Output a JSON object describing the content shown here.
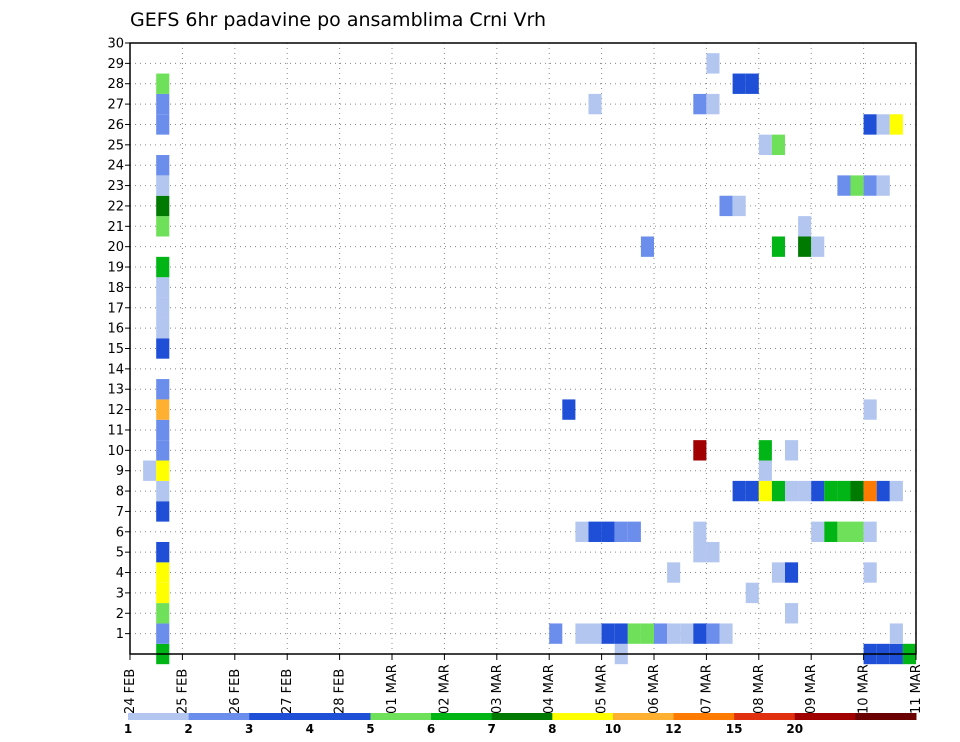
{
  "chart_data": {
    "type": "heatmap",
    "title": "GEFS 6hr padavine po ansamblima Crni Vrh",
    "xlabel": "",
    "ylabel": "",
    "x_tick_labels": [
      "24 FEB",
      "25 FEB",
      "26 FEB",
      "27 FEB",
      "28 FEB",
      "01 MAR",
      "02 MAR",
      "03 MAR",
      "04 MAR",
      "05 MAR",
      "06 MAR",
      "07 MAR",
      "08 MAR",
      "09 MAR",
      "10 MAR",
      "11 MAR"
    ],
    "x_range_days": [
      0,
      15
    ],
    "time_step_hours": 6,
    "ylim": [
      0,
      30
    ],
    "y_tick_labels": [
      "1",
      "2",
      "3",
      "4",
      "5",
      "6",
      "7",
      "8",
      "9",
      "10",
      "11",
      "12",
      "13",
      "14",
      "15",
      "16",
      "17",
      "18",
      "19",
      "20",
      "21",
      "22",
      "23",
      "24",
      "25",
      "26",
      "27",
      "28",
      "29",
      "30"
    ],
    "grid": true,
    "legend": {
      "placement": "bottom",
      "thresholds": [
        "1",
        "2",
        "3",
        "4",
        "5",
        "6",
        "7",
        "8",
        "10",
        "12",
        "15",
        "20"
      ],
      "colors": [
        "#b3c6f0",
        "#6b8eed",
        "#1e4fd6",
        "#1e4fd6",
        "#6fe05a",
        "#00b515",
        "#007a00",
        "#ffff00",
        "#ffb030",
        "#ff7a00",
        "#e03010",
        "#a00000",
        "#6a0000"
      ]
    },
    "cells": [
      {
        "member": 0,
        "t": 0.5,
        "lev": 5
      },
      {
        "member": 1,
        "t": 0.5,
        "lev": 1
      },
      {
        "member": 2,
        "t": 0.5,
        "lev": 4
      },
      {
        "member": 3,
        "t": 0.5,
        "lev": 7
      },
      {
        "member": 4,
        "t": 0.5,
        "lev": 7
      },
      {
        "member": 5,
        "t": 0.5,
        "lev": 2
      },
      {
        "member": 7,
        "t": 0.5,
        "lev": 2
      },
      {
        "member": 8,
        "t": 0.5,
        "lev": 0
      },
      {
        "member": 9,
        "t": 0.25,
        "lev": 0
      },
      {
        "member": 9,
        "t": 0.5,
        "lev": 7
      },
      {
        "member": 10,
        "t": 0.5,
        "lev": 1
      },
      {
        "member": 11,
        "t": 0.5,
        "lev": 1
      },
      {
        "member": 12,
        "t": 0.5,
        "lev": 8
      },
      {
        "member": 13,
        "t": 0.5,
        "lev": 1
      },
      {
        "member": 15,
        "t": 0.5,
        "lev": 2
      },
      {
        "member": 16,
        "t": 0.5,
        "lev": 0
      },
      {
        "member": 17,
        "t": 0.5,
        "lev": 0
      },
      {
        "member": 18,
        "t": 0.5,
        "lev": 0
      },
      {
        "member": 19,
        "t": 0.5,
        "lev": 5
      },
      {
        "member": 21,
        "t": 0.5,
        "lev": 4
      },
      {
        "member": 22,
        "t": 0.5,
        "lev": 6
      },
      {
        "member": 23,
        "t": 0.5,
        "lev": 0
      },
      {
        "member": 24,
        "t": 0.5,
        "lev": 1
      },
      {
        "member": 26,
        "t": 0.5,
        "lev": 1
      },
      {
        "member": 27,
        "t": 0.5,
        "lev": 1
      },
      {
        "member": 28,
        "t": 0.5,
        "lev": 4
      },
      {
        "member": 0,
        "t": 9.25,
        "lev": 0
      },
      {
        "member": 0,
        "t": 14.0,
        "lev": 2
      },
      {
        "member": 0,
        "t": 14.25,
        "lev": 2
      },
      {
        "member": 0,
        "t": 14.5,
        "lev": 2
      },
      {
        "member": 0,
        "t": 14.75,
        "lev": 5
      },
      {
        "member": 1,
        "t": 8.0,
        "lev": 1
      },
      {
        "member": 1,
        "t": 8.5,
        "lev": 0
      },
      {
        "member": 1,
        "t": 8.75,
        "lev": 0
      },
      {
        "member": 1,
        "t": 9.0,
        "lev": 2
      },
      {
        "member": 1,
        "t": 9.25,
        "lev": 2
      },
      {
        "member": 1,
        "t": 9.5,
        "lev": 4
      },
      {
        "member": 1,
        "t": 9.75,
        "lev": 4
      },
      {
        "member": 1,
        "t": 10.0,
        "lev": 1
      },
      {
        "member": 1,
        "t": 10.25,
        "lev": 0
      },
      {
        "member": 1,
        "t": 10.5,
        "lev": 0
      },
      {
        "member": 1,
        "t": 10.75,
        "lev": 2
      },
      {
        "member": 1,
        "t": 11.0,
        "lev": 1
      },
      {
        "member": 1,
        "t": 11.25,
        "lev": 0
      },
      {
        "member": 1,
        "t": 14.5,
        "lev": 0
      },
      {
        "member": 2,
        "t": 12.5,
        "lev": 0
      },
      {
        "member": 3,
        "t": 11.75,
        "lev": 0
      },
      {
        "member": 4,
        "t": 10.25,
        "lev": 0
      },
      {
        "member": 4,
        "t": 12.25,
        "lev": 0
      },
      {
        "member": 4,
        "t": 12.5,
        "lev": 2
      },
      {
        "member": 4,
        "t": 14.0,
        "lev": 0
      },
      {
        "member": 5,
        "t": 10.75,
        "lev": 0
      },
      {
        "member": 5,
        "t": 11.0,
        "lev": 0
      },
      {
        "member": 6,
        "t": 8.5,
        "lev": 0
      },
      {
        "member": 6,
        "t": 8.75,
        "lev": 2
      },
      {
        "member": 6,
        "t": 9.0,
        "lev": 2
      },
      {
        "member": 6,
        "t": 9.25,
        "lev": 1
      },
      {
        "member": 6,
        "t": 9.5,
        "lev": 1
      },
      {
        "member": 6,
        "t": 10.75,
        "lev": 0
      },
      {
        "member": 6,
        "t": 13.0,
        "lev": 0
      },
      {
        "member": 6,
        "t": 13.25,
        "lev": 5
      },
      {
        "member": 6,
        "t": 13.5,
        "lev": 4
      },
      {
        "member": 6,
        "t": 13.75,
        "lev": 4
      },
      {
        "member": 6,
        "t": 14.0,
        "lev": 0
      },
      {
        "member": 8,
        "t": 11.5,
        "lev": 2
      },
      {
        "member": 8,
        "t": 11.75,
        "lev": 2
      },
      {
        "member": 8,
        "t": 12.0,
        "lev": 7
      },
      {
        "member": 8,
        "t": 12.25,
        "lev": 5
      },
      {
        "member": 8,
        "t": 12.5,
        "lev": 0
      },
      {
        "member": 8,
        "t": 12.75,
        "lev": 0
      },
      {
        "member": 8,
        "t": 13.0,
        "lev": 2
      },
      {
        "member": 8,
        "t": 13.25,
        "lev": 5
      },
      {
        "member": 8,
        "t": 13.5,
        "lev": 5
      },
      {
        "member": 8,
        "t": 13.75,
        "lev": 6
      },
      {
        "member": 8,
        "t": 14.0,
        "lev": 9
      },
      {
        "member": 8,
        "t": 14.25,
        "lev": 2
      },
      {
        "member": 8,
        "t": 14.5,
        "lev": 0
      },
      {
        "member": 9,
        "t": 12.0,
        "lev": 0
      },
      {
        "member": 10,
        "t": 10.75,
        "lev": 11
      },
      {
        "member": 10,
        "t": 12.0,
        "lev": 5
      },
      {
        "member": 10,
        "t": 12.5,
        "lev": 0
      },
      {
        "member": 12,
        "t": 8.25,
        "lev": 2
      },
      {
        "member": 12,
        "t": 14.0,
        "lev": 0
      },
      {
        "member": 20,
        "t": 9.75,
        "lev": 1
      },
      {
        "member": 20,
        "t": 12.25,
        "lev": 5
      },
      {
        "member": 20,
        "t": 12.75,
        "lev": 6
      },
      {
        "member": 20,
        "t": 13.0,
        "lev": 0
      },
      {
        "member": 21,
        "t": 12.75,
        "lev": 0
      },
      {
        "member": 22,
        "t": 11.25,
        "lev": 1
      },
      {
        "member": 22,
        "t": 11.5,
        "lev": 0
      },
      {
        "member": 23,
        "t": 13.5,
        "lev": 1
      },
      {
        "member": 23,
        "t": 13.75,
        "lev": 4
      },
      {
        "member": 23,
        "t": 14.0,
        "lev": 1
      },
      {
        "member": 23,
        "t": 14.25,
        "lev": 0
      },
      {
        "member": 25,
        "t": 12.0,
        "lev": 0
      },
      {
        "member": 25,
        "t": 12.25,
        "lev": 4
      },
      {
        "member": 26,
        "t": 14.0,
        "lev": 2
      },
      {
        "member": 26,
        "t": 14.25,
        "lev": 0
      },
      {
        "member": 26,
        "t": 14.5,
        "lev": 7
      },
      {
        "member": 27,
        "t": 8.75,
        "lev": 0
      },
      {
        "member": 27,
        "t": 10.75,
        "lev": 1
      },
      {
        "member": 27,
        "t": 11.0,
        "lev": 0
      },
      {
        "member": 28,
        "t": 11.5,
        "lev": 2
      },
      {
        "member": 28,
        "t": 11.75,
        "lev": 2
      },
      {
        "member": 29,
        "t": 11.0,
        "lev": 0
      }
    ]
  }
}
